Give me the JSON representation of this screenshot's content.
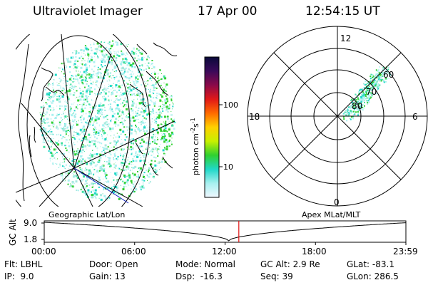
{
  "header": {
    "instrument": "Ultraviolet Imager",
    "date": "17 Apr 00",
    "time": "12:54:15 UT"
  },
  "colorbar": {
    "unit": "photon cm",
    "unit_exp1": "-2",
    "unit_mid": "s",
    "unit_exp2": "-1",
    "ticks": [
      "100",
      "10"
    ],
    "colors": [
      "#0a0a3a",
      "#3a0a5a",
      "#8a0a4a",
      "#e01818",
      "#ff6a00",
      "#ffd000",
      "#c8f000",
      "#30d030",
      "#20d8c8",
      "#a8f0f0",
      "#f0f8ff"
    ]
  },
  "polar": {
    "mlt_labels": [
      "12",
      "18",
      "6",
      "0"
    ],
    "mlat_labels": [
      "60",
      "70",
      "80"
    ]
  },
  "panel_labels": {
    "left": "Geographic Lat/Lon",
    "right": "Apex MLat/MLT"
  },
  "timeline": {
    "ylabel": "GC Alt",
    "yticks": [
      "9.0",
      "1.8"
    ],
    "xticks": [
      "00:00",
      "06:00",
      "12:00",
      "18:00",
      "23:59"
    ],
    "current_fraction": 0.538
  },
  "info": {
    "col1": [
      "Flt: LBHL",
      "IP:  9.0"
    ],
    "col2": [
      "Door: Open",
      "Gain: 13"
    ],
    "col3": [
      "Mode: Normal",
      "Dsp:  -16.3"
    ],
    "col4": [
      "GC Alt: 2.9 Re",
      "Seq: 39"
    ],
    "col5": [
      "GLat: -83.1",
      "GLon: 286.5"
    ]
  }
}
